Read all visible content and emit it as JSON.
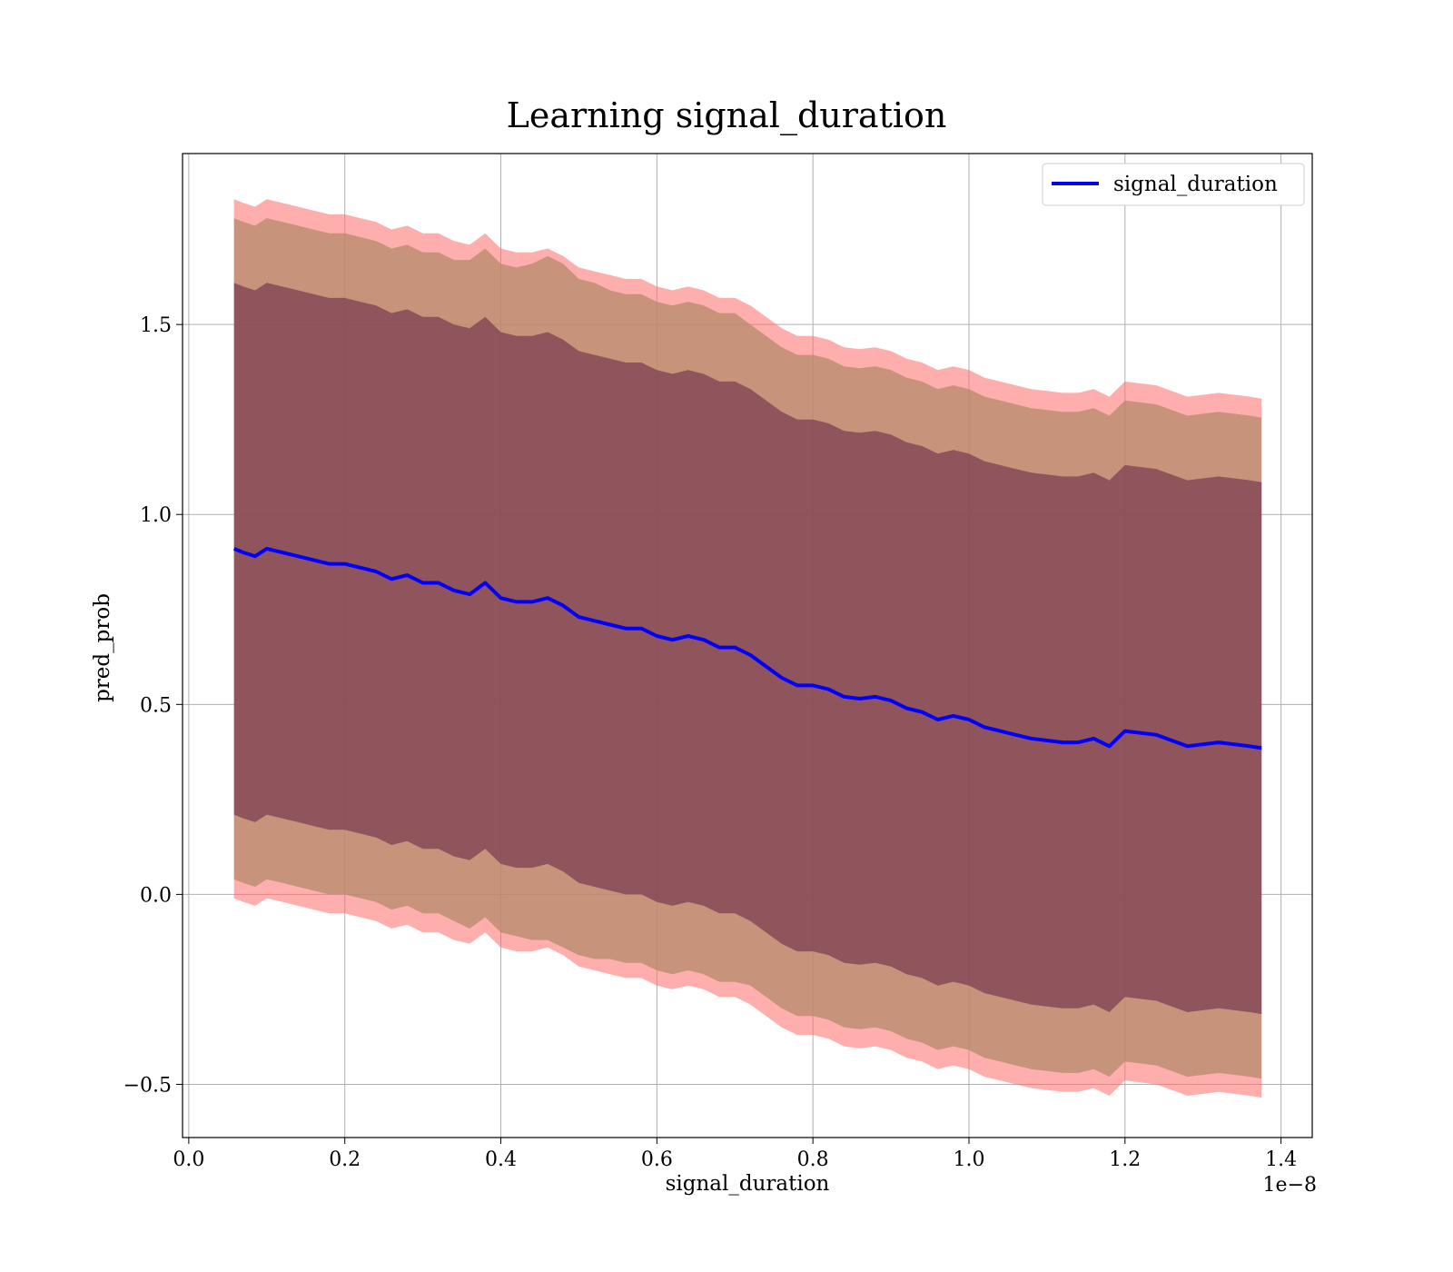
{
  "chart_data": {
    "type": "line",
    "title": "Learning signal_duration",
    "xlabel": "signal_duration",
    "ylabel": "pred_prob",
    "x_offset_label": "1e−8",
    "xlim": [
      -0.008,
      1.44
    ],
    "ylim": [
      -0.64,
      1.95
    ],
    "x_ticks": [
      0.0,
      0.2,
      0.4,
      0.6,
      0.8,
      1.0,
      1.2,
      1.4
    ],
    "x_tick_labels": [
      "0.0",
      "0.2",
      "0.4",
      "0.6",
      "0.8",
      "1.0",
      "1.2",
      "1.4"
    ],
    "y_ticks": [
      -0.5,
      0.0,
      0.5,
      1.0,
      1.5
    ],
    "y_tick_labels": [
      "−0.5",
      "0.0",
      "0.5",
      "1.0",
      "1.5"
    ],
    "grid": true,
    "legend_position": "top-right",
    "colors": {
      "line": "#0000ff",
      "band_outer": "#ff6b6b",
      "band_inner": "#4a2330"
    },
    "series": [
      {
        "name": "signal_duration",
        "x": [
          0.058,
          0.07,
          0.085,
          0.1,
          0.12,
          0.14,
          0.16,
          0.18,
          0.2,
          0.22,
          0.24,
          0.26,
          0.28,
          0.3,
          0.32,
          0.34,
          0.36,
          0.38,
          0.4,
          0.42,
          0.44,
          0.46,
          0.48,
          0.5,
          0.52,
          0.54,
          0.56,
          0.58,
          0.6,
          0.62,
          0.64,
          0.66,
          0.68,
          0.7,
          0.72,
          0.74,
          0.76,
          0.78,
          0.8,
          0.82,
          0.84,
          0.86,
          0.88,
          0.9,
          0.92,
          0.94,
          0.96,
          0.98,
          1.0,
          1.02,
          1.04,
          1.06,
          1.08,
          1.1,
          1.12,
          1.14,
          1.16,
          1.18,
          1.2,
          1.24,
          1.28,
          1.32,
          1.36,
          1.375
        ],
        "values": [
          0.91,
          0.9,
          0.89,
          0.91,
          0.9,
          0.89,
          0.88,
          0.87,
          0.87,
          0.86,
          0.85,
          0.83,
          0.84,
          0.82,
          0.82,
          0.8,
          0.79,
          0.82,
          0.78,
          0.77,
          0.77,
          0.78,
          0.76,
          0.73,
          0.72,
          0.71,
          0.7,
          0.7,
          0.68,
          0.67,
          0.68,
          0.67,
          0.65,
          0.65,
          0.63,
          0.6,
          0.57,
          0.55,
          0.55,
          0.54,
          0.52,
          0.515,
          0.52,
          0.51,
          0.49,
          0.48,
          0.46,
          0.47,
          0.46,
          0.44,
          0.43,
          0.42,
          0.41,
          0.405,
          0.4,
          0.4,
          0.41,
          0.39,
          0.43,
          0.42,
          0.39,
          0.4,
          0.39,
          0.385
        ],
        "inner_band_half_width": 0.7,
        "outer_band_half_width": [
          0.87,
          0.87,
          0.87,
          0.87,
          0.87,
          0.87,
          0.87,
          0.87,
          0.87,
          0.87,
          0.87,
          0.87,
          0.87,
          0.87,
          0.87,
          0.87,
          0.88,
          0.88,
          0.88,
          0.88,
          0.89,
          0.9,
          0.9,
          0.89,
          0.89,
          0.88,
          0.88,
          0.88,
          0.88,
          0.88,
          0.88,
          0.88,
          0.88,
          0.88,
          0.87,
          0.87,
          0.87,
          0.87,
          0.87,
          0.87,
          0.87,
          0.87,
          0.87,
          0.87,
          0.87,
          0.87,
          0.87,
          0.87,
          0.87,
          0.87,
          0.87,
          0.87,
          0.87,
          0.87,
          0.87,
          0.87,
          0.87,
          0.87,
          0.87,
          0.87,
          0.87,
          0.87,
          0.87,
          0.87
        ],
        "pink_band_half_width": 0.92
      }
    ]
  }
}
